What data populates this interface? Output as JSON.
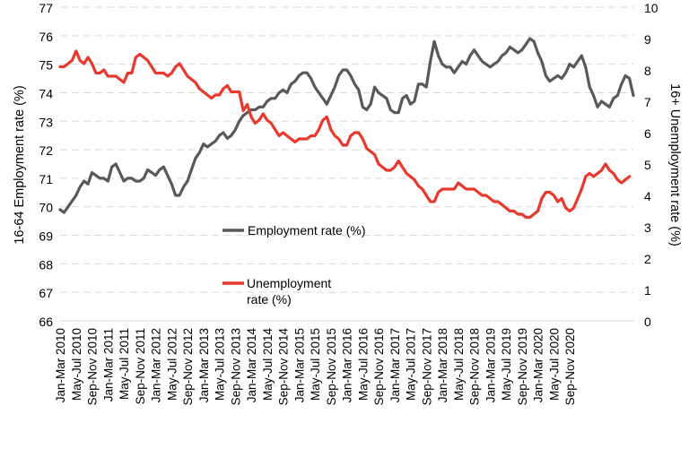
{
  "chart_data": {
    "type": "line",
    "xlabel": "",
    "ylabel": "16-64 Employment rate (%)",
    "y2label": "16+ Unemployment rate (%)",
    "ylim": [
      66,
      77
    ],
    "y2lim": [
      0,
      10
    ],
    "yticks": [
      "66",
      "67",
      "68",
      "69",
      "70",
      "71",
      "72",
      "73",
      "74",
      "75",
      "76",
      "77"
    ],
    "y2ticks": [
      "0",
      "1",
      "2",
      "3",
      "4",
      "5",
      "6",
      "7",
      "8",
      "9",
      "10"
    ],
    "grid": "horizontal dashed",
    "x_start": "Jan-Mar 2010",
    "x_end": "Sep-Nov 2020",
    "x_tick_labels": [
      "Jan-Mar 2010",
      "May-Jul 2010",
      "Sep-Nov 2010",
      "Jan-Mar 2011",
      "May-Jul 2011",
      "Sep-Nov 2011",
      "Jan-Mar 2012",
      "May-Jul 2012",
      "Sep-Nov 2012",
      "Jan-Mar 2013",
      "May-Jul 2013",
      "Sep-Nov 2013",
      "Jan-Mar 2014",
      "May-Jul 2014",
      "Sep-Nov 2014",
      "Jan-Mar 2015",
      "May-Jul 2015",
      "Sep-Nov 2015",
      "Jan-Mar 2016",
      "May-Jul 2016",
      "Sep-Nov 2016",
      "Jan-Mar 2017",
      "May-Jul 2017",
      "Sep-Nov 2017",
      "Jan-Mar 2018",
      "May-Jul 2018",
      "Sep-Nov 2018",
      "Jan-Mar 2019",
      "May-Jul 2019",
      "Sep-Nov 2019",
      "Jan-Mar 2020",
      "May-Jul 2020",
      "Sep-Nov 2020"
    ],
    "series": [
      {
        "name": "Employment rate (%)",
        "axis": "left",
        "color": "#595959",
        "values": [
          69.9,
          69.8,
          70.0,
          70.2,
          70.4,
          70.7,
          70.9,
          70.8,
          71.2,
          71.1,
          71.0,
          71.0,
          70.9,
          71.4,
          71.5,
          71.2,
          70.9,
          71.0,
          71.0,
          70.9,
          70.9,
          71.0,
          71.3,
          71.2,
          71.1,
          71.3,
          71.4,
          71.1,
          70.8,
          70.4,
          70.4,
          70.7,
          70.9,
          71.3,
          71.7,
          71.9,
          72.2,
          72.1,
          72.2,
          72.3,
          72.5,
          72.6,
          72.4,
          72.5,
          72.7,
          73.0,
          73.2,
          73.3,
          73.4,
          73.4,
          73.5,
          73.5,
          73.7,
          73.8,
          73.8,
          74.0,
          74.1,
          74.0,
          74.3,
          74.4,
          74.6,
          74.7,
          74.7,
          74.5,
          74.2,
          74.0,
          73.8,
          73.6,
          73.9,
          74.2,
          74.6,
          74.8,
          74.8,
          74.6,
          74.3,
          74.1,
          73.5,
          73.4,
          73.6,
          74.2,
          74.0,
          73.9,
          73.8,
          73.4,
          73.3,
          73.3,
          73.8,
          73.9,
          73.6,
          73.7,
          74.3,
          74.3,
          74.2,
          75.1,
          75.8,
          75.3,
          75.0,
          74.9,
          74.9,
          74.7,
          74.9,
          75.1,
          75.0,
          75.3,
          75.5,
          75.3,
          75.1,
          75.0,
          74.9,
          75.0,
          75.1,
          75.3,
          75.4,
          75.6,
          75.5,
          75.4,
          75.5,
          75.7,
          75.9,
          75.8,
          75.4,
          75.1,
          74.6,
          74.4,
          74.5,
          74.6,
          74.5,
          74.7,
          75.0,
          74.9,
          75.1,
          75.3,
          74.9,
          74.2,
          73.9,
          73.5,
          73.7,
          73.6,
          73.5,
          73.8,
          73.9,
          74.3,
          74.6,
          74.5,
          73.9
        ]
      },
      {
        "name": "Unemployment rate (%)",
        "axis": "right",
        "color": "#e8392d",
        "values": [
          8.1,
          8.1,
          8.2,
          8.3,
          8.6,
          8.3,
          8.2,
          8.4,
          8.2,
          7.9,
          7.9,
          8.0,
          7.8,
          7.8,
          7.8,
          7.7,
          7.6,
          7.9,
          7.9,
          8.4,
          8.5,
          8.4,
          8.3,
          8.1,
          7.9,
          7.9,
          7.9,
          7.8,
          7.9,
          8.1,
          8.2,
          8.0,
          7.8,
          7.7,
          7.6,
          7.4,
          7.3,
          7.2,
          7.1,
          7.2,
          7.2,
          7.4,
          7.5,
          7.3,
          7.3,
          7.3,
          6.7,
          6.9,
          6.5,
          6.3,
          6.4,
          6.6,
          6.4,
          6.3,
          6.1,
          5.9,
          6.0,
          5.9,
          5.8,
          5.7,
          5.8,
          5.8,
          5.8,
          5.9,
          5.9,
          6.1,
          6.4,
          6.5,
          6.1,
          5.9,
          5.8,
          5.6,
          5.6,
          5.9,
          6.0,
          6.0,
          5.8,
          5.5,
          5.4,
          5.3,
          5.0,
          4.9,
          4.8,
          4.8,
          4.9,
          5.1,
          4.9,
          4.7,
          4.6,
          4.5,
          4.3,
          4.2,
          4.0,
          3.8,
          3.8,
          4.1,
          4.2,
          4.2,
          4.2,
          4.2,
          4.4,
          4.3,
          4.2,
          4.2,
          4.2,
          4.1,
          4.0,
          4.0,
          3.9,
          3.8,
          3.8,
          3.7,
          3.6,
          3.5,
          3.5,
          3.4,
          3.4,
          3.3,
          3.3,
          3.4,
          3.5,
          3.9,
          4.1,
          4.1,
          4.0,
          3.8,
          3.9,
          3.6,
          3.5,
          3.6,
          3.9,
          4.2,
          4.6,
          4.7,
          4.6,
          4.7,
          4.8,
          5.0,
          4.8,
          4.7,
          4.5,
          4.4,
          4.5,
          4.6
        ]
      }
    ],
    "legend": [
      {
        "label": "Employment rate (%)",
        "color": "#595959"
      },
      {
        "label_line1": "Unemployment",
        "label_line2": "rate (%)",
        "color": "#e8392d"
      }
    ]
  }
}
